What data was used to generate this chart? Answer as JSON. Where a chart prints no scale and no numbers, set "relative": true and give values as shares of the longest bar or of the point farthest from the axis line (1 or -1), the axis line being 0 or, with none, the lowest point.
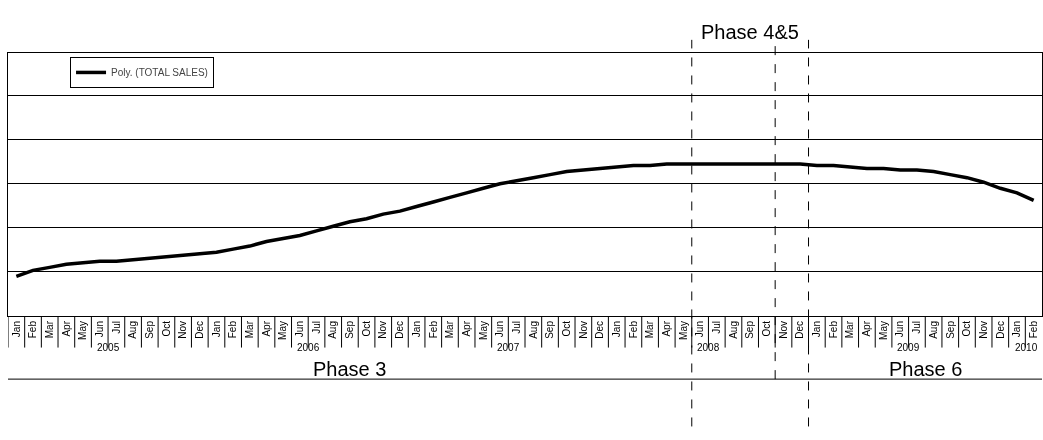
{
  "chart_data": {
    "type": "line",
    "relative": true,
    "categories": [
      "Jan",
      "Feb",
      "Mar",
      "Apr",
      "May",
      "Jun",
      "Jul",
      "Aug",
      "Sep",
      "Oct",
      "Nov",
      "Dec",
      "Jan",
      "Feb",
      "Mar",
      "Apr",
      "May",
      "Jun",
      "Jul",
      "Aug",
      "Sep",
      "Oct",
      "Nov",
      "Dec",
      "Jan",
      "Feb",
      "Mar",
      "Apr",
      "May",
      "Jun",
      "Jul",
      "Aug",
      "Sep",
      "Oct",
      "Nov",
      "Dec",
      "Jan",
      "Feb",
      "Mar",
      "Apr",
      "May",
      "Jun",
      "Jul",
      "Aug",
      "Sep",
      "Oct",
      "Nov",
      "Dec",
      "Jan",
      "Feb",
      "Mar",
      "Apr",
      "May",
      "Jun",
      "Jul",
      "Aug",
      "Sep",
      "Oct",
      "Nov",
      "Dec",
      "Jan",
      "Feb"
    ],
    "series": [
      {
        "name": "Poly. (TOTAL SALES)",
        "color": "#000000",
        "values": [
          0.26,
          0.3,
          0.32,
          0.34,
          0.35,
          0.36,
          0.36,
          0.37,
          0.38,
          0.39,
          0.4,
          0.41,
          0.42,
          0.44,
          0.46,
          0.49,
          0.51,
          0.53,
          0.56,
          0.59,
          0.62,
          0.64,
          0.67,
          0.69,
          0.72,
          0.75,
          0.78,
          0.81,
          0.84,
          0.87,
          0.89,
          0.91,
          0.93,
          0.95,
          0.96,
          0.97,
          0.98,
          0.99,
          0.99,
          1.0,
          1.0,
          1.0,
          1.0,
          1.0,
          1.0,
          1.0,
          1.0,
          1.0,
          0.99,
          0.99,
          0.98,
          0.97,
          0.97,
          0.96,
          0.96,
          0.95,
          0.93,
          0.91,
          0.88,
          0.84,
          0.81,
          0.76
        ]
      }
    ],
    "annotations": [
      "Phase 3",
      "Phase 4&5",
      "Phase 6",
      "2005",
      "2006",
      "2007",
      "2008",
      "2009",
      "2010"
    ],
    "grid": "y",
    "legend": "top left",
    "line_style": "solid",
    "marker": "none"
  }
}
